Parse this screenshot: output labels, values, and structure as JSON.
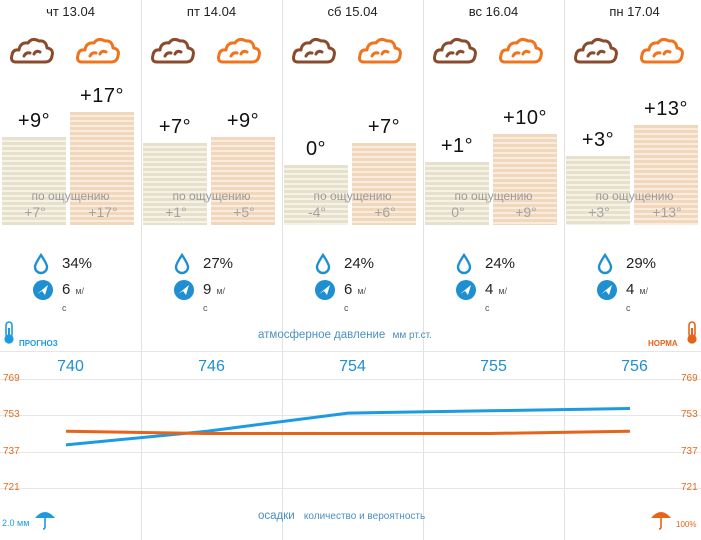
{
  "days": [
    {
      "date": "чт 13.04",
      "night_icon": "cloud-icon",
      "day_icon": "cloud-icon",
      "night_temp": "+9°",
      "day_temp": "+17°",
      "feels_label": "по ощущению",
      "feels_night": "+7°",
      "feels_day": "+17°",
      "humidity": "34%",
      "wind": "6",
      "wind_unit": "м/с",
      "pressure": "740"
    },
    {
      "date": "пт 14.04",
      "night_icon": "cloud-icon",
      "day_icon": "cloud-icon",
      "night_temp": "+7°",
      "day_temp": "+9°",
      "feels_label": "по ощущению",
      "feels_night": "+1°",
      "feels_day": "+5°",
      "humidity": "27%",
      "wind": "9",
      "wind_unit": "м/с",
      "pressure": "746"
    },
    {
      "date": "сб 15.04",
      "night_icon": "cloud-icon",
      "day_icon": "cloud-icon",
      "night_temp": "0°",
      "day_temp": "+7°",
      "feels_label": "по ощущению",
      "feels_night": "-4°",
      "feels_day": "+6°",
      "humidity": "24%",
      "wind": "6",
      "wind_unit": "м/с",
      "pressure": "754"
    },
    {
      "date": "вс 16.04",
      "night_icon": "moon-cloud-icon",
      "day_icon": "cloud-icon",
      "night_temp": "+1°",
      "day_temp": "+10°",
      "feels_label": "по ощущению",
      "feels_night": "0°",
      "feels_day": "+9°",
      "humidity": "24%",
      "wind": "4",
      "wind_unit": "м/с",
      "pressure": "755"
    },
    {
      "date": "пн 17.04",
      "night_icon": "moon-cloud-icon",
      "day_icon": "cloud-icon",
      "night_temp": "+3°",
      "day_temp": "+13°",
      "feels_label": "по ощущению",
      "feels_night": "+3°",
      "feels_day": "+13°",
      "humidity": "29%",
      "wind": "4",
      "wind_unit": "м/с",
      "pressure": "756"
    }
  ],
  "legend": {
    "forecast": "ПРОГНОЗ",
    "norm": "НОРМА"
  },
  "pressure_caption": "атмосферное давление",
  "pressure_unit": "мм рт.ст.",
  "precip_caption": "осадки",
  "precip_sub": "количество и вероятность",
  "precip_left": "2.0 мм",
  "precip_right": "100%",
  "axis_labels": [
    "769",
    "753",
    "737",
    "721"
  ],
  "colors": {
    "forecast": "#1e9be0",
    "norm": "#e8631a",
    "text_blue": "#1e8fd0"
  },
  "chart_data": {
    "type": "line",
    "x": [
      "чт 13.04",
      "пт 14.04",
      "сб 15.04",
      "вс 16.04",
      "пн 17.04"
    ],
    "series": [
      {
        "name": "ПРОГНОЗ",
        "values": [
          740,
          746,
          754,
          755,
          756
        ]
      },
      {
        "name": "НОРМА",
        "values": [
          746,
          745,
          745,
          745,
          746
        ]
      }
    ],
    "ylim": [
      721,
      769
    ]
  }
}
